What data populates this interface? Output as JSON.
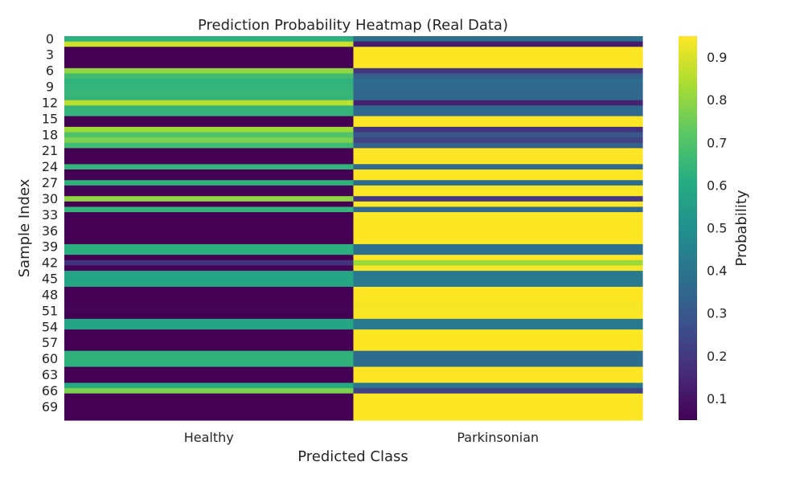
{
  "chart_data": {
    "type": "heatmap",
    "title": "Prediction Probability Heatmap (Real Data)",
    "xlabel": "Predicted Class",
    "ylabel": "Sample Index",
    "colorbar_label": "Probability",
    "colormap": "viridis",
    "colorbar_range": [
      0.05,
      0.95
    ],
    "colorbar_ticks": [
      "0.1",
      "0.2",
      "0.3",
      "0.4",
      "0.5",
      "0.6",
      "0.7",
      "0.8",
      "0.9"
    ],
    "columns": [
      "Healthy",
      "Parkinsonian"
    ],
    "row_tick_labels": [
      "0",
      "3",
      "6",
      "9",
      "12",
      "15",
      "18",
      "21",
      "24",
      "27",
      "30",
      "33",
      "36",
      "39",
      "42",
      "45",
      "48",
      "51",
      "54",
      "57",
      "60",
      "63",
      "66",
      "69"
    ],
    "row_tick_step": 3,
    "healthy_probability": [
      0.62,
      0.88,
      0.05,
      0.05,
      0.05,
      0.05,
      0.8,
      0.67,
      0.63,
      0.64,
      0.65,
      0.64,
      0.86,
      0.64,
      0.64,
      0.05,
      0.05,
      0.82,
      0.7,
      0.77,
      0.67,
      0.05,
      0.05,
      0.05,
      0.64,
      0.05,
      0.05,
      0.63,
      0.06,
      0.05,
      0.8,
      0.05,
      0.64,
      0.05,
      0.05,
      0.05,
      0.05,
      0.05,
      0.05,
      0.62,
      0.62,
      0.05,
      0.18,
      0.06,
      0.58,
      0.58,
      0.58,
      0.05,
      0.05,
      0.05,
      0.06,
      0.06,
      0.05,
      0.58,
      0.58,
      0.05,
      0.05,
      0.05,
      0.05,
      0.63,
      0.63,
      0.63,
      0.05,
      0.05,
      0.05,
      0.6,
      0.77,
      0.05,
      0.05,
      0.05,
      0.05,
      0.05
    ],
    "parkinsonian_probability": [
      0.38,
      0.12,
      0.95,
      0.95,
      0.95,
      0.95,
      0.2,
      0.33,
      0.37,
      0.36,
      0.35,
      0.36,
      0.14,
      0.36,
      0.36,
      0.95,
      0.95,
      0.18,
      0.3,
      0.23,
      0.33,
      0.95,
      0.95,
      0.95,
      0.36,
      0.95,
      0.95,
      0.37,
      0.94,
      0.95,
      0.2,
      0.95,
      0.36,
      0.95,
      0.95,
      0.95,
      0.95,
      0.95,
      0.95,
      0.38,
      0.38,
      0.95,
      0.82,
      0.94,
      0.42,
      0.42,
      0.42,
      0.95,
      0.95,
      0.95,
      0.94,
      0.94,
      0.95,
      0.42,
      0.42,
      0.95,
      0.95,
      0.95,
      0.95,
      0.37,
      0.37,
      0.37,
      0.95,
      0.95,
      0.95,
      0.4,
      0.23,
      0.95,
      0.95,
      0.95,
      0.95,
      0.95
    ]
  }
}
